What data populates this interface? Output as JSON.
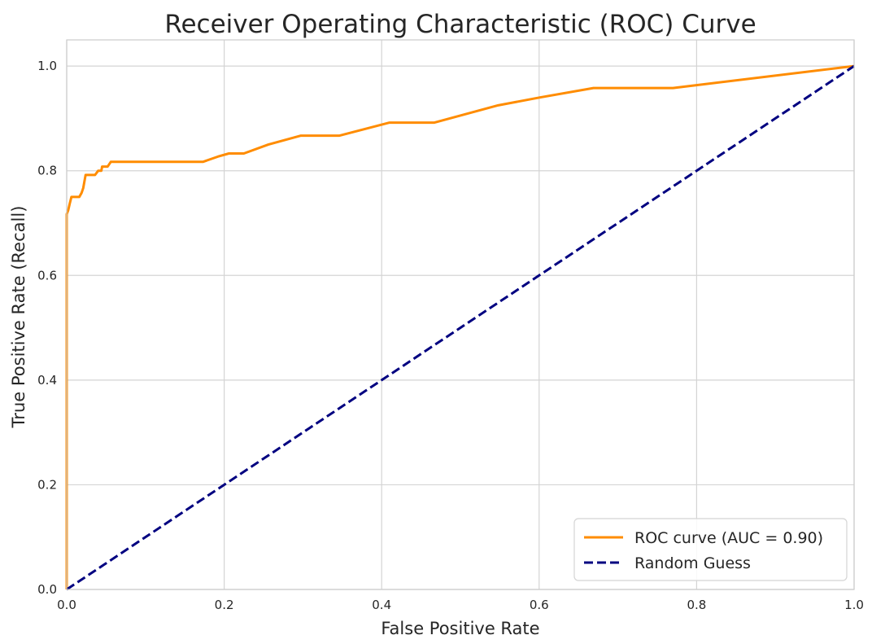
{
  "chart_data": {
    "type": "line",
    "title": "Receiver Operating Characteristic (ROC) Curve",
    "xlabel": "False Positive Rate",
    "ylabel": "True Positive Rate (Recall)",
    "xlim": [
      0.0,
      1.0
    ],
    "ylim": [
      0.0,
      1.05
    ],
    "xticks": [
      "0.0",
      "0.2",
      "0.4",
      "0.6",
      "0.8",
      "1.0"
    ],
    "yticks": [
      "0.0",
      "0.2",
      "0.4",
      "0.6",
      "0.8",
      "1.0"
    ],
    "grid": true,
    "legend_position": "lower-right",
    "series": [
      {
        "name": "ROC curve (AUC = 0.90)",
        "color": "#ff8c00",
        "style": "solid",
        "x": [
          0.0,
          0.0,
          0.0,
          0.002,
          0.004,
          0.006,
          0.01,
          0.016,
          0.019,
          0.021,
          0.024,
          0.036,
          0.04,
          0.044,
          0.045,
          0.052,
          0.056,
          0.058,
          0.173,
          0.192,
          0.206,
          0.225,
          0.256,
          0.297,
          0.346,
          0.41,
          0.467,
          0.548,
          0.601,
          0.669,
          0.77,
          1.0
        ],
        "y": [
          0.0,
          0.712,
          0.717,
          0.725,
          0.738,
          0.75,
          0.75,
          0.75,
          0.758,
          0.767,
          0.792,
          0.792,
          0.8,
          0.8,
          0.808,
          0.808,
          0.817,
          0.817,
          0.817,
          0.827,
          0.833,
          0.833,
          0.85,
          0.867,
          0.867,
          0.892,
          0.892,
          0.925,
          0.94,
          0.958,
          0.958,
          1.0
        ]
      },
      {
        "name": "Random Guess",
        "color": "#000080",
        "style": "dashed",
        "x": [
          0.0,
          1.0
        ],
        "y": [
          0.0,
          1.0
        ]
      }
    ]
  }
}
